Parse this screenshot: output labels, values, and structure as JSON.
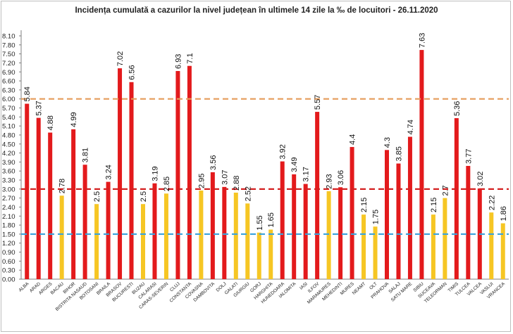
{
  "chart_data": {
    "type": "bar",
    "title": "Incidența cumulată a cazurilor la nivel județean în ultimele 14 zile la ‰ de locuitori - 26.11.2020",
    "categories": [
      "ALBA",
      "ARAD",
      "ARGES",
      "BACAU",
      "BIHOR",
      "BISTRITA NASAUD",
      "BOTOSANI",
      "BRAILA",
      "BRASOV",
      "BUCURESTI",
      "BUZAU",
      "CALARASI",
      "CARAS-SEVERIN",
      "CLUJ",
      "CONSTANTA",
      "COVASNA",
      "DAMBOVITA",
      "DOLJ",
      "GALATI",
      "GIURGIU",
      "GORJ",
      "HARGHITA",
      "HUNEDOARA",
      "IALOMITA",
      "IASI",
      "ILFOV",
      "MARAMURES",
      "MEHEDINTI",
      "MURES",
      "NEAMT",
      "OLT",
      "PRAHOVA",
      "SALAJ",
      "SATU MARE",
      "SIBIU",
      "SUCEAVA",
      "TELEORMAN",
      "TIMIS",
      "TULCEA",
      "VALCEA",
      "VASLUI",
      "VRANCEA"
    ],
    "values": [
      5.84,
      5.37,
      4.88,
      2.78,
      4.99,
      3.81,
      2.5,
      3.24,
      7.02,
      6.56,
      2.5,
      3.19,
      2.85,
      6.93,
      7.1,
      2.95,
      3.56,
      3.07,
      2.88,
      2.52,
      1.55,
      1.65,
      3.92,
      3.49,
      3.17,
      5.57,
      2.93,
      3.06,
      4.4,
      2.15,
      1.75,
      4.3,
      3.85,
      4.74,
      7.63,
      2.15,
      2.7,
      5.36,
      3.77,
      3.02,
      2.22,
      1.86
    ],
    "value_labels": [
      "5.84",
      "5.37",
      "4.88",
      "2.78",
      "4.99",
      "3.81",
      "2.5",
      "3.24",
      "7.02",
      "6.56",
      "2.5",
      "3.19",
      "2.85",
      "6.93",
      "7.1",
      "2.95",
      "3.56",
      "3.07",
      "2.88",
      "2.52",
      "1.55",
      "1.65",
      "3.92",
      "3.49",
      "3.17",
      "5.57",
      "2.93",
      "3.06",
      "4.4",
      "2.15",
      "1.75",
      "4.3",
      "3.85",
      "4.74",
      "7.63",
      "2.15",
      "2.7",
      "5.36",
      "3.77",
      "3.02",
      "2.22",
      "1.86"
    ],
    "yticks": [
      "0.00",
      "0.30",
      "0.60",
      "0.90",
      "1.20",
      "1.50",
      "1.80",
      "2.10",
      "2.40",
      "2.70",
      "3.00",
      "3.30",
      "3.60",
      "3.90",
      "4.20",
      "4.50",
      "4.80",
      "5.10",
      "5.40",
      "5.70",
      "6.00",
      "6.30",
      "6.60",
      "6.90",
      "7.20",
      "7.50",
      "7.80",
      "8.10"
    ],
    "ylim": [
      0,
      8.1
    ],
    "thresholds": [
      {
        "value": 6.0,
        "color": "#e59b5a",
        "style": "dashed"
      },
      {
        "value": 3.0,
        "color": "#d42020",
        "style": "dashed"
      },
      {
        "value": 1.5,
        "color": "#3ba3dd",
        "style": "dashed"
      }
    ],
    "bar_colors": {
      "above_3": "#e31a1c",
      "between": "#f6c624",
      "below_1_5": "#f6c624"
    },
    "grid": false,
    "legend": "none"
  }
}
